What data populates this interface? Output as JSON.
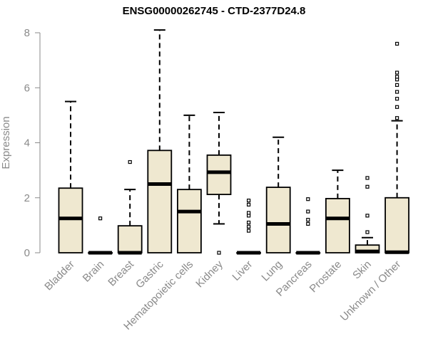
{
  "chart_data": {
    "type": "boxplot",
    "title": "ENSG00000262745 - CTD-2377D24.8",
    "xlabel": "",
    "ylabel": "Expression",
    "ylim": [
      0,
      8.3
    ],
    "yticks": [
      0,
      2,
      4,
      6,
      8
    ],
    "grid": false,
    "box_color": "#efe8d0",
    "categories": [
      "Bladder",
      "Brain",
      "Breast",
      "Gastric",
      "Hematopoietic cells",
      "Kidney",
      "Liver",
      "Lung",
      "Pancreas",
      "Prostate",
      "Skin",
      "Unknown / Other"
    ],
    "boxes": [
      {
        "whisker_low": 0,
        "q1": 0,
        "median": 1.25,
        "q3": 2.35,
        "whisker_high": 5.5,
        "outliers": []
      },
      {
        "whisker_low": 0,
        "q1": 0,
        "median": 0,
        "q3": 0,
        "whisker_high": 0,
        "outliers": [
          1.25
        ]
      },
      {
        "whisker_low": 0,
        "q1": 0,
        "median": 0,
        "q3": 0.98,
        "whisker_high": 2.3,
        "outliers": [
          3.3
        ]
      },
      {
        "whisker_low": 0,
        "q1": 0,
        "median": 2.5,
        "q3": 3.72,
        "whisker_high": 8.1,
        "outliers": []
      },
      {
        "whisker_low": 0,
        "q1": 0,
        "median": 1.5,
        "q3": 2.3,
        "whisker_high": 5.0,
        "outliers": []
      },
      {
        "whisker_low": 1.05,
        "q1": 2.12,
        "median": 2.93,
        "q3": 3.55,
        "whisker_high": 5.1,
        "outliers": [
          0
        ]
      },
      {
        "whisker_low": 0,
        "q1": 0,
        "median": 0,
        "q3": 0,
        "whisker_high": 0,
        "outliers": [
          0.8,
          0.95,
          1.1,
          1.35,
          1.45,
          1.75,
          1.9
        ]
      },
      {
        "whisker_low": 0,
        "q1": 0,
        "median": 1.05,
        "q3": 2.38,
        "whisker_high": 4.2,
        "outliers": []
      },
      {
        "whisker_low": 0,
        "q1": 0,
        "median": 0,
        "q3": 0,
        "whisker_high": 0,
        "outliers": [
          1.05,
          1.2,
          1.5,
          1.95
        ]
      },
      {
        "whisker_low": 0,
        "q1": 0,
        "median": 1.25,
        "q3": 1.97,
        "whisker_high": 3.0,
        "outliers": []
      },
      {
        "whisker_low": 0,
        "q1": 0,
        "median": 0.05,
        "q3": 0.28,
        "whisker_high": 0.55,
        "outliers": [
          0.75,
          1.35,
          2.4,
          2.72
        ]
      },
      {
        "whisker_low": 0,
        "q1": 0,
        "median": 0.02,
        "q3": 2.0,
        "whisker_high": 4.8,
        "outliers": [
          4.9,
          5.3,
          5.6,
          5.85,
          6.1,
          6.3,
          6.4,
          6.55,
          7.6
        ]
      }
    ]
  }
}
